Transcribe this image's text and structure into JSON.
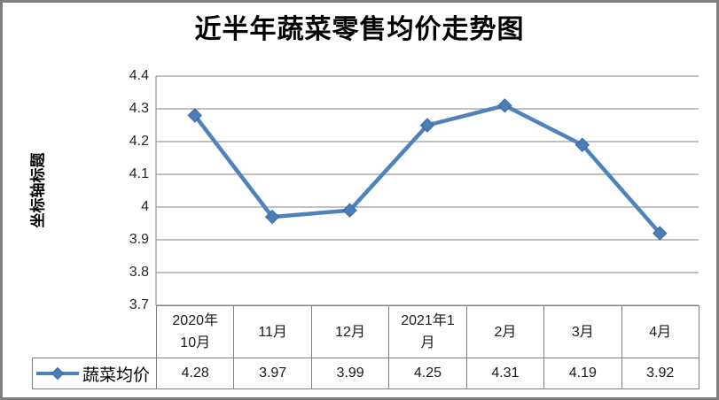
{
  "chart_data": {
    "type": "line",
    "title": "近半年蔬菜零售均价走势图",
    "ylabel": "坐标轴标题",
    "xlabel": "",
    "categories": [
      "2020年10月",
      "11月",
      "12月",
      "2021年1月",
      "2月",
      "3月",
      "4月"
    ],
    "series": [
      {
        "name": "蔬菜均价",
        "values": [
          4.28,
          3.97,
          3.99,
          4.25,
          4.31,
          4.19,
          3.92
        ]
      }
    ],
    "ylim": [
      3.7,
      4.4
    ],
    "ytick_step": 0.1,
    "grid": true,
    "legend_position": "bottom-left-of-data-table",
    "data_table_shown": true,
    "marker": "diamond"
  },
  "y_ticks": [
    "4.4",
    "4.3",
    "4.2",
    "4.1",
    "4",
    "3.9",
    "3.8",
    "3.7"
  ],
  "table": {
    "category_display": [
      "2020年\n10月",
      "11月",
      "12月",
      "2021年1\n月",
      "2月",
      "3月",
      "4月"
    ],
    "value_display": [
      "4.28",
      "3.97",
      "3.99",
      "4.25",
      "4.31",
      "4.19",
      "3.92"
    ],
    "legend_label": "蔬菜均价"
  },
  "colors": {
    "line": "#4f81bd",
    "marker_fill": "#4a7ebb",
    "marker_stroke": "#3a679c",
    "gridline": "#9a9a9a",
    "axis_line": "#9a9a9a",
    "table_border": "#7f7f7f",
    "outer_border": "#7f7f7f",
    "text": "#1a1a1a"
  }
}
